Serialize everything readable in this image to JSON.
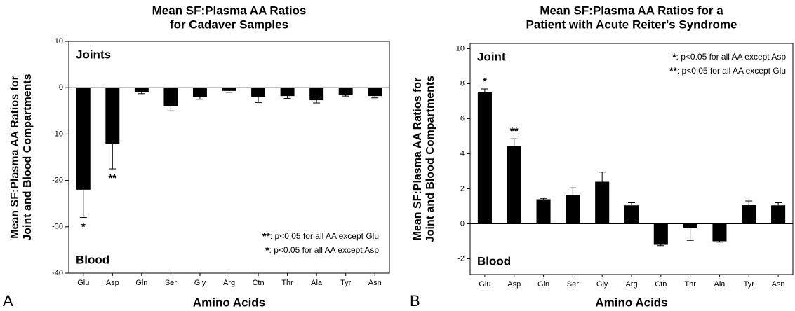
{
  "chart_data": [
    {
      "type": "bar",
      "panel_label": "A",
      "title": [
        "Mean SF:Plasma AA Ratios",
        "for Cadaver Samples"
      ],
      "ylabel": [
        "Mean SF:Plasma AA Ratios for",
        "Joint and Blood Compartments"
      ],
      "xlabel": "Amino Acids",
      "categories": [
        "Glu",
        "Asp",
        "Gln",
        "Ser",
        "Gly",
        "Arg",
        "Ctn",
        "Thr",
        "Ala",
        "Tyr",
        "Asn"
      ],
      "values": [
        -22,
        -12.2,
        -1,
        -4,
        -2,
        -0.7,
        -2,
        -1.8,
        -2.7,
        -1.5,
        -1.8
      ],
      "errors": [
        6,
        5.3,
        0.3,
        1,
        0.5,
        0.3,
        1.2,
        0.5,
        0.6,
        0.3,
        0.4
      ],
      "bar_labels": [
        "*",
        "**",
        null,
        null,
        null,
        null,
        null,
        null,
        null,
        null,
        null
      ],
      "color": "#000000",
      "ylim": [
        -40,
        10
      ],
      "yticks": [
        -40,
        -30,
        -20,
        -10,
        0,
        10
      ],
      "region_labels": {
        "top": "Joints",
        "bottom": "Blood"
      },
      "notes": [
        {
          "mark": "**",
          "text": ": p<0.05 for all AA except Glu"
        },
        {
          "mark": "*",
          "text": ": p<0.05 for all AA except Asp"
        }
      ]
    },
    {
      "type": "bar",
      "panel_label": "B",
      "title": [
        "Mean SF:Plasma AA Ratios for a",
        "Patient with Acute Reiter's Syndrome"
      ],
      "ylabel": [
        "Mean SF:Plasma AA Ratios for",
        "Joint and Blood Compartments"
      ],
      "xlabel": "Amino Acids",
      "categories": [
        "Glu",
        "Asp",
        "Gln",
        "Ser",
        "Gly",
        "Arg",
        "Ctn",
        "Thr",
        "Ala",
        "Tyr",
        "Asn"
      ],
      "values": [
        7.5,
        4.45,
        1.4,
        1.65,
        2.4,
        1.05,
        -1.2,
        -0.25,
        -1,
        1.1,
        1.05
      ],
      "errors": [
        0.2,
        0.4,
        0.05,
        0.4,
        0.55,
        0.15,
        0.05,
        0.7,
        0.05,
        0.2,
        0.15
      ],
      "bar_labels": [
        "*",
        "**",
        null,
        null,
        null,
        null,
        null,
        null,
        null,
        null,
        null
      ],
      "color": "#000000",
      "ylim": [
        -2.9,
        10.3
      ],
      "yticks": [
        -2,
        0,
        2,
        4,
        6,
        8,
        10
      ],
      "region_labels": {
        "top": "Joint",
        "bottom": "Blood"
      },
      "notes": [
        {
          "mark": "*",
          "text": ": p<0.05 for all AA except Asp"
        },
        {
          "mark": "**",
          "text": ": p<0.05 for all AA except Glu"
        }
      ]
    }
  ]
}
